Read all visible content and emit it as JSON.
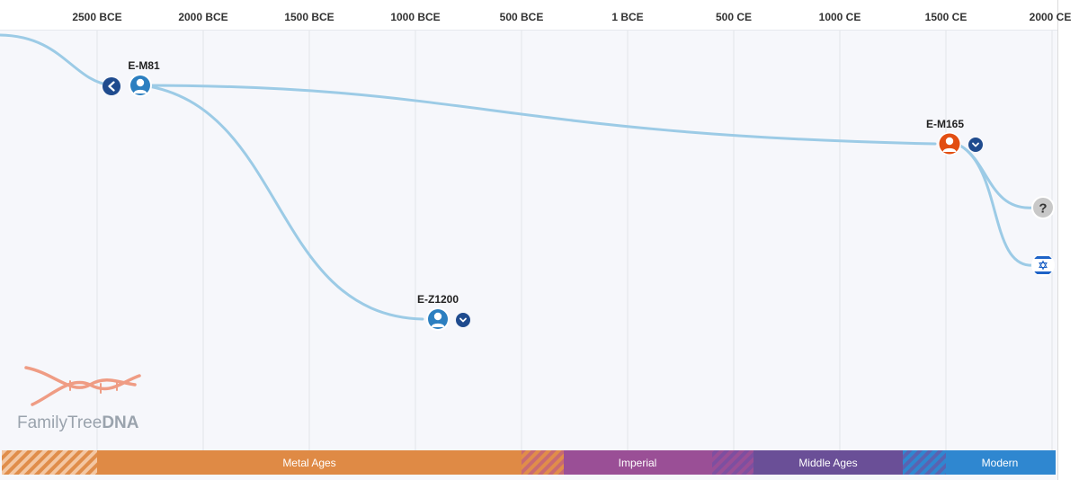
{
  "axis": {
    "ticks": [
      "2500 BCE",
      "2000 BCE",
      "1500 BCE",
      "1000 BCE",
      "500 BCE",
      "1 BCE",
      "500 CE",
      "1000 CE",
      "1500 CE",
      "2000 CE"
    ]
  },
  "nodes": {
    "m81": {
      "label": "E-M81",
      "icon": "person-icon",
      "color": "#2c7fc0"
    },
    "z1200": {
      "label": "E-Z1200",
      "icon": "person-icon",
      "color": "#2c7fc0"
    },
    "m165": {
      "label": "E-M165",
      "icon": "person-icon",
      "color": "#e24e12"
    },
    "unknown": {
      "label": "?",
      "icon": "question-icon",
      "color": "#c8c8c8"
    },
    "israel": {
      "icon": "israel-flag-icon",
      "color": "#1e63c7"
    }
  },
  "eras": [
    {
      "label": "Metal Ages",
      "color": "#df8a45"
    },
    {
      "label": "Imperial",
      "color": "#9a4f96"
    },
    {
      "label": "Middle Ages",
      "color": "#6a4f97"
    },
    {
      "label": "Modern",
      "color": "#2f87d0"
    }
  ],
  "logo": {
    "text_regular": "FamilyTree",
    "text_bold": "DNA"
  },
  "colors": {
    "lineage_line": "#9ccbe6",
    "background": "#f6f7fb",
    "gridline": "#e1e4ea",
    "nav_button": "#1f4b8e"
  }
}
